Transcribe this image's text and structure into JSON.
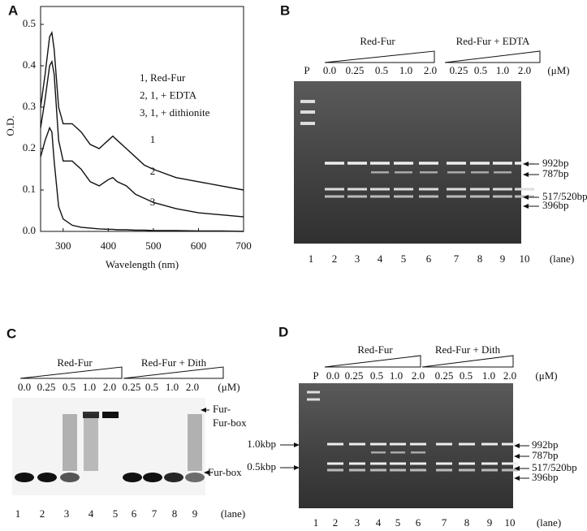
{
  "chart_data": {
    "type": "line",
    "panel": "A",
    "ylabel": "O.D.",
    "xlabel": "Wavelength (nm)",
    "x": [
      250,
      260,
      270,
      275,
      280,
      290,
      300,
      320,
      340,
      360,
      380,
      400,
      410,
      420,
      440,
      460,
      480,
      500,
      550,
      600,
      650,
      700
    ],
    "series": [
      {
        "name": "1, Red-Fur",
        "color": "#111111",
        "values": [
          0.3,
          0.38,
          0.47,
          0.48,
          0.44,
          0.3,
          0.26,
          0.26,
          0.24,
          0.21,
          0.2,
          0.22,
          0.23,
          0.22,
          0.2,
          0.18,
          0.16,
          0.15,
          0.13,
          0.12,
          0.11,
          0.1
        ]
      },
      {
        "name": "2, 1, + EDTA",
        "color": "#111111",
        "values": [
          0.25,
          0.32,
          0.4,
          0.41,
          0.38,
          0.22,
          0.17,
          0.17,
          0.15,
          0.12,
          0.11,
          0.125,
          0.13,
          0.12,
          0.11,
          0.09,
          0.08,
          0.07,
          0.055,
          0.045,
          0.04,
          0.035
        ]
      },
      {
        "name": "3, 1, + dithionite",
        "color": "#111111",
        "values": [
          0.18,
          0.22,
          0.25,
          0.24,
          0.17,
          0.06,
          0.03,
          0.015,
          0.01,
          0.008,
          0.006,
          0.005,
          0.005,
          0.004,
          0.004,
          0.003,
          0.003,
          0.002,
          0.002,
          0.001,
          0.001,
          0
        ]
      }
    ],
    "annotations": [
      "1",
      "2",
      "3"
    ],
    "xlim": [
      250,
      700
    ],
    "xticks": [
      300,
      400,
      500,
      600,
      700
    ],
    "ylim": [
      0,
      0.5
    ],
    "yticks": [
      {
        "value": 0,
        "label": "0.0"
      },
      0.1,
      0.2,
      0.3,
      0.4,
      0.5
    ]
  },
  "panels": {
    "B": {
      "letter": "B",
      "groups": [
        "Red-Fur",
        "Red-Fur + EDTA"
      ],
      "marker": "P",
      "concentrations": [
        "0.0",
        "0.25",
        "0.5",
        "1.0",
        "2.0",
        "0.25",
        "0.5",
        "1.0",
        "2.0"
      ],
      "conc_unit": "(μM)",
      "lanes": [
        "1",
        "2",
        "3",
        "4",
        "5",
        "6",
        "7",
        "8",
        "9",
        "10"
      ],
      "lane_unit": "(lane)",
      "bands": [
        "992bp",
        "787bp",
        "517/520bp",
        "396bp"
      ]
    },
    "C": {
      "letter": "C",
      "groups": [
        "Red-Fur",
        "Red-Fur + Dith"
      ],
      "concentrations": [
        "0.0",
        "0.25",
        "0.5",
        "1.0",
        "2.0",
        "0.25",
        "0.5",
        "1.0",
        "2.0"
      ],
      "conc_unit": "(μM)",
      "lanes": [
        "1",
        "2",
        "3",
        "4",
        "5",
        "6",
        "7",
        "8",
        "9"
      ],
      "lane_unit": "(lane)",
      "complex": [
        "Fur-",
        "Fur-box"
      ],
      "free": "Fur-box"
    },
    "D": {
      "letter": "D",
      "groups": [
        "Red-Fur",
        "Red-Fur + Dith"
      ],
      "marker": "P",
      "concentrations": [
        "0.0",
        "0.25",
        "0.5",
        "1.0",
        "2.0",
        "0.25",
        "0.5",
        "1.0",
        "2.0"
      ],
      "conc_unit": "(μM)",
      "lanes": [
        "1",
        "2",
        "3",
        "4",
        "5",
        "6",
        "7",
        "8",
        "9",
        "10"
      ],
      "lane_unit": "(lane)",
      "size_markers": [
        "1.0kbp",
        "0.5kbp"
      ],
      "bands": [
        "992bp",
        "787bp",
        "517/520bp",
        "396bp"
      ]
    }
  }
}
